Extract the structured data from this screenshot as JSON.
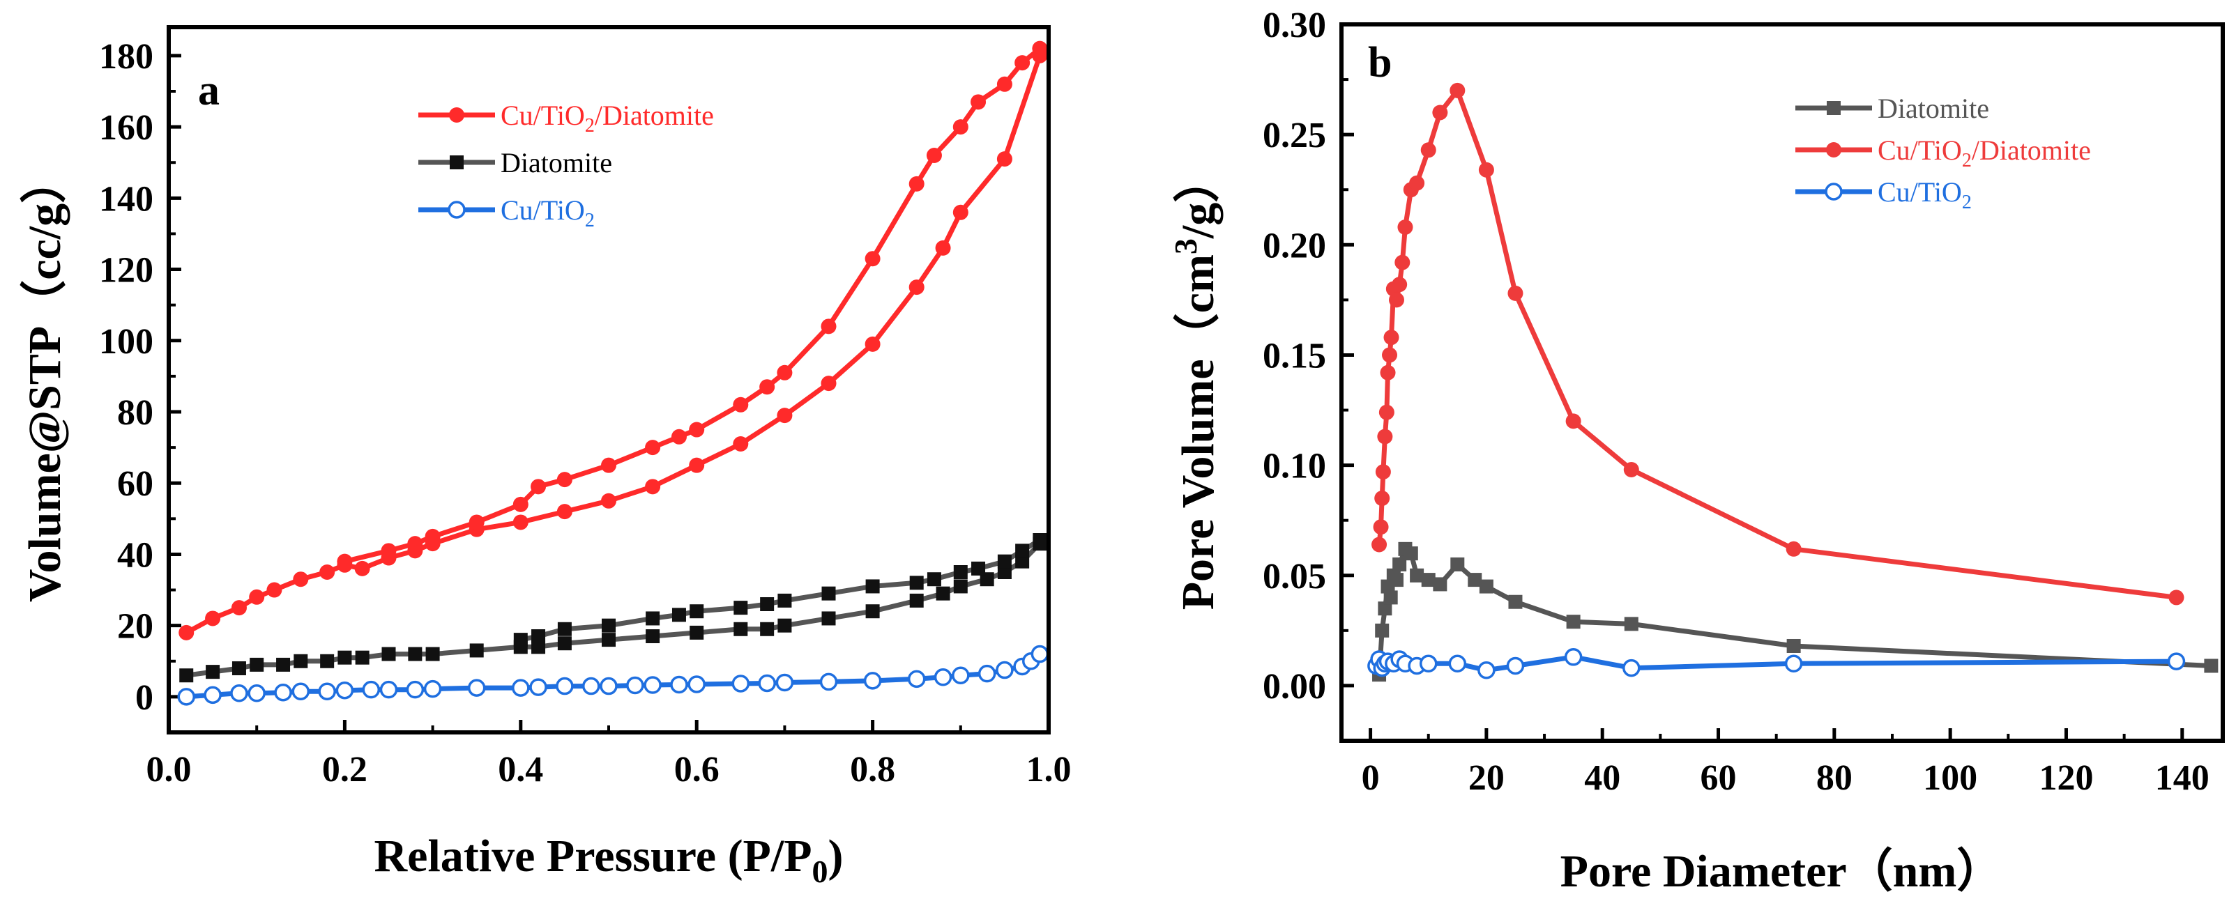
{
  "chart_data": [
    {
      "panel": "a",
      "type": "line",
      "xlabel": "Relative Pressure (P/P0)",
      "xlabel_main": "Relative Pressure (P/P",
      "xlabel_sub": "0",
      "xlabel_close": ")",
      "ylabel": "Volume@STP（cc/g）",
      "xlim": [
        0.0,
        1.0
      ],
      "ylim": [
        -10,
        188
      ],
      "xticks": [
        0.0,
        0.2,
        0.4,
        0.6,
        0.8,
        1.0
      ],
      "xtick_labels": [
        "0.0",
        "0.2",
        "0.4",
        "0.6",
        "0.8",
        "1.0"
      ],
      "yticks": [
        0,
        20,
        40,
        60,
        80,
        100,
        120,
        140,
        160,
        180
      ],
      "ytick_labels": [
        "0",
        "20",
        "40",
        "60",
        "80",
        "100",
        "120",
        "140",
        "160",
        "180"
      ],
      "legend_position": "top-center",
      "series": [
        {
          "name": "Cu/TiO2/Diatomite",
          "label_parts": [
            "Cu/TiO",
            "2",
            "/Diatomite"
          ],
          "color": "#ff2a2a",
          "marker": "filled-circle",
          "branches": [
            {
              "x": [
                0.02,
                0.05,
                0.08,
                0.1,
                0.12,
                0.15,
                0.18,
                0.2,
                0.22,
                0.25,
                0.28,
                0.3,
                0.35,
                0.4,
                0.45,
                0.5,
                0.55,
                0.6,
                0.65,
                0.7,
                0.75,
                0.8,
                0.85,
                0.88,
                0.9,
                0.95,
                0.99
              ],
              "y": [
                18,
                22,
                25,
                28,
                30,
                33,
                35,
                37,
                36,
                39,
                41,
                43,
                47,
                49,
                52,
                55,
                59,
                65,
                71,
                79,
                88,
                99,
                115,
                126,
                136,
                151,
                180
              ]
            },
            {
              "x": [
                0.99,
                0.97,
                0.95,
                0.92,
                0.9,
                0.87,
                0.85,
                0.8,
                0.75,
                0.7,
                0.68,
                0.65,
                0.6,
                0.58,
                0.55,
                0.5,
                0.45,
                0.42,
                0.4,
                0.35,
                0.3,
                0.28,
                0.25,
                0.2
              ],
              "y": [
                182,
                178,
                172,
                167,
                160,
                152,
                144,
                123,
                104,
                91,
                87,
                82,
                75,
                73,
                70,
                65,
                61,
                59,
                54,
                49,
                45,
                43,
                41,
                38
              ]
            }
          ]
        },
        {
          "name": "Diatomite",
          "label_parts": [
            "Diatomite"
          ],
          "color": "#111111",
          "line_color": "#555555",
          "marker": "filled-square",
          "branches": [
            {
              "x": [
                0.02,
                0.05,
                0.08,
                0.1,
                0.13,
                0.15,
                0.18,
                0.2,
                0.22,
                0.25,
                0.28,
                0.3,
                0.35,
                0.4,
                0.42,
                0.45,
                0.5,
                0.55,
                0.6,
                0.65,
                0.68,
                0.7,
                0.75,
                0.8,
                0.85,
                0.88,
                0.9,
                0.93,
                0.95,
                0.97,
                0.99
              ],
              "y": [
                6,
                7,
                8,
                9,
                9,
                10,
                10,
                11,
                11,
                12,
                12,
                12,
                13,
                14,
                14,
                15,
                16,
                17,
                18,
                19,
                19,
                20,
                22,
                24,
                27,
                29,
                31,
                33,
                35,
                38,
                43
              ]
            },
            {
              "x": [
                0.99,
                0.97,
                0.95,
                0.92,
                0.9,
                0.87,
                0.85,
                0.8,
                0.75,
                0.7,
                0.68,
                0.65,
                0.6,
                0.58,
                0.55,
                0.5,
                0.45,
                0.42,
                0.4
              ],
              "y": [
                44,
                41,
                38,
                36,
                35,
                33,
                32,
                31,
                29,
                27,
                26,
                25,
                24,
                23,
                22,
                20,
                19,
                17,
                16
              ]
            }
          ]
        },
        {
          "name": "Cu/TiO2",
          "label_parts": [
            "Cu/TiO",
            "2"
          ],
          "color": "#1f6fe0",
          "marker": "open-circle",
          "branches": [
            {
              "x": [
                0.02,
                0.05,
                0.08,
                0.1,
                0.13,
                0.15,
                0.18,
                0.2,
                0.23,
                0.25,
                0.28,
                0.3,
                0.35,
                0.4,
                0.42,
                0.45,
                0.48,
                0.5,
                0.53,
                0.55,
                0.58,
                0.6,
                0.65,
                0.68,
                0.7,
                0.75,
                0.8,
                0.85,
                0.88,
                0.9,
                0.93,
                0.95,
                0.97,
                0.98,
                0.99
              ],
              "y": [
                0,
                0.5,
                1,
                1,
                1.2,
                1.5,
                1.5,
                1.8,
                2,
                2,
                2,
                2.2,
                2.5,
                2.5,
                2.7,
                3,
                3,
                3,
                3.2,
                3.3,
                3.4,
                3.5,
                3.7,
                3.8,
                4,
                4.2,
                4.5,
                5,
                5.5,
                6,
                6.5,
                7.5,
                8.5,
                10,
                12
              ]
            }
          ]
        }
      ]
    },
    {
      "panel": "b",
      "type": "line",
      "xlabel": "Pore Diameter（nm）",
      "ylabel": "Pore Volume（cm3/g）",
      "ylabel_main": "Pore Volume（cm",
      "ylabel_sup": "3",
      "ylabel_close": "/g）",
      "xlim": [
        -5,
        147
      ],
      "ylim": [
        -0.025,
        0.3
      ],
      "xticks": [
        0,
        20,
        40,
        60,
        80,
        100,
        120,
        140
      ],
      "xtick_labels": [
        "0",
        "20",
        "40",
        "60",
        "80",
        "100",
        "120",
        "140"
      ],
      "yticks": [
        0.0,
        0.05,
        0.1,
        0.15,
        0.2,
        0.25,
        0.3
      ],
      "ytick_labels": [
        "0.00",
        "0.05",
        "0.10",
        "0.15",
        "0.20",
        "0.25",
        "0.30"
      ],
      "legend_position": "top-right",
      "series": [
        {
          "name": "Diatomite",
          "label_parts": [
            "Diatomite"
          ],
          "color": "#555555",
          "marker": "filled-square",
          "branches": [
            {
              "x": [
                1.5,
                2,
                2.5,
                3,
                3.5,
                4,
                4.5,
                5,
                6,
                7,
                8,
                10,
                12,
                15,
                18,
                20,
                25,
                35,
                45,
                73,
                145
              ],
              "y": [
                0.005,
                0.025,
                0.035,
                0.045,
                0.04,
                0.05,
                0.048,
                0.055,
                0.062,
                0.06,
                0.05,
                0.048,
                0.046,
                0.055,
                0.048,
                0.045,
                0.038,
                0.029,
                0.028,
                0.018,
                0.009
              ]
            }
          ]
        },
        {
          "name": "Cu/TiO2/Diatomite",
          "label_parts": [
            "Cu/TiO",
            "2",
            "/Diatomite"
          ],
          "color": "#ee3b3b",
          "marker": "filled-circle",
          "branches": [
            {
              "x": [
                1.5,
                1.8,
                2,
                2.2,
                2.5,
                2.8,
                3,
                3.3,
                3.6,
                4,
                4.5,
                5,
                5.5,
                6,
                7,
                8,
                10,
                12,
                15,
                20,
                25,
                35,
                45,
                73,
                139
              ],
              "y": [
                0.064,
                0.072,
                0.085,
                0.097,
                0.113,
                0.124,
                0.142,
                0.15,
                0.158,
                0.18,
                0.175,
                0.182,
                0.192,
                0.208,
                0.225,
                0.228,
                0.243,
                0.26,
                0.27,
                0.234,
                0.178,
                0.12,
                0.098,
                0.062,
                0.04
              ]
            }
          ]
        },
        {
          "name": "Cu/TiO2",
          "label_parts": [
            "Cu/TiO",
            "2"
          ],
          "color": "#1f6fe0",
          "marker": "open-circle",
          "branches": [
            {
              "x": [
                1,
                1.5,
                2,
                2.5,
                3,
                4,
                5,
                6,
                8,
                10,
                15,
                20,
                25,
                35,
                45,
                73,
                139
              ],
              "y": [
                0.009,
                0.012,
                0.008,
                0.01,
                0.011,
                0.01,
                0.012,
                0.01,
                0.009,
                0.01,
                0.01,
                0.007,
                0.009,
                0.013,
                0.008,
                0.01,
                0.011
              ]
            }
          ]
        }
      ]
    }
  ]
}
